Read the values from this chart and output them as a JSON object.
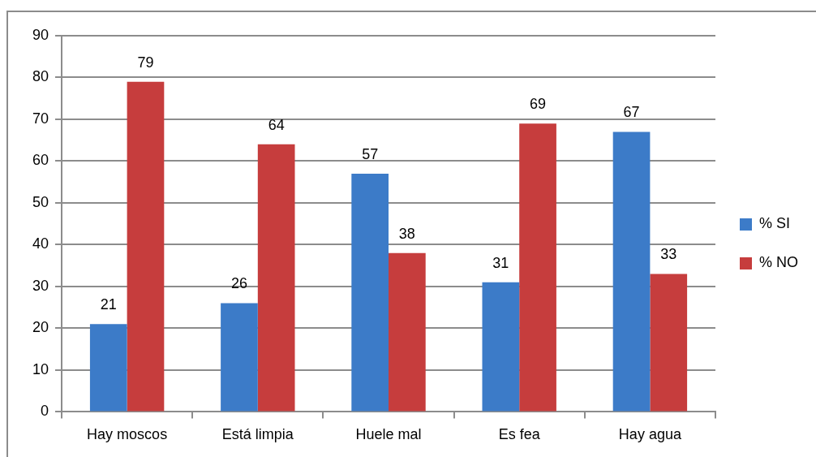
{
  "chart_data": {
    "type": "bar",
    "categories": [
      "Hay moscos",
      "Está limpia",
      "Huele mal",
      "Es fea",
      "Hay agua"
    ],
    "series": [
      {
        "name": "% SI",
        "color": "#3c7bc8",
        "values": [
          21,
          26,
          57,
          31,
          67
        ]
      },
      {
        "name": "% NO",
        "color": "#c63d3d",
        "values": [
          79,
          64,
          38,
          69,
          33
        ]
      }
    ],
    "ylim": [
      0,
      90
    ],
    "yticks": [
      0,
      10,
      20,
      30,
      40,
      50,
      60,
      70,
      80,
      90
    ],
    "grid": "y",
    "legend": "right",
    "data_labels": true
  }
}
